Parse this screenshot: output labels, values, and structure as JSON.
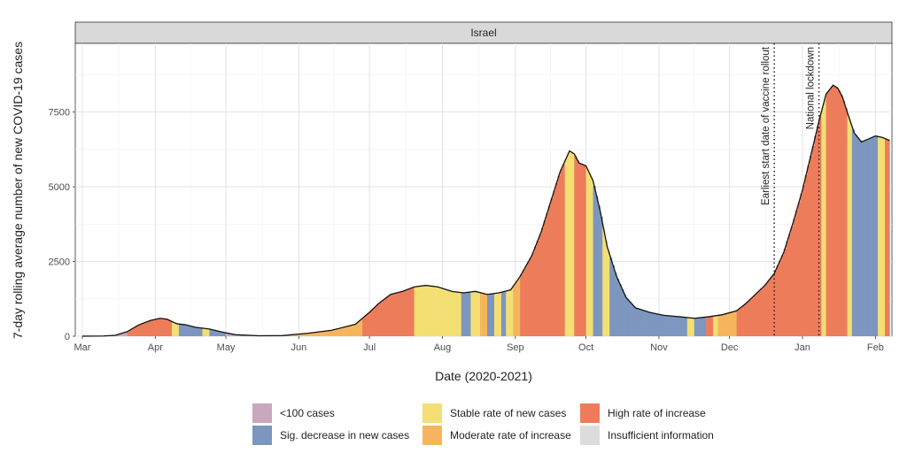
{
  "chart_data": {
    "type": "area",
    "facet": "Israel",
    "xlabel": "Date (2020-2021)",
    "ylabel": "7-day rolling average number of new COVID-19 cases",
    "ylim": [
      0,
      9800
    ],
    "yticks": [
      0,
      2500,
      5000,
      7500
    ],
    "ytick_labels": [
      "0",
      "2500",
      "5000",
      "7500"
    ],
    "xlim": [
      "2020-02-27",
      "2021-02-08"
    ],
    "xticks": [
      "2020-03-01",
      "2020-04-01",
      "2020-05-01",
      "2020-06-01",
      "2020-07-01",
      "2020-08-01",
      "2020-09-01",
      "2020-10-01",
      "2020-11-01",
      "2020-12-01",
      "2021-01-01",
      "2021-02-01"
    ],
    "xtick_labels": [
      "Mar",
      "Apr",
      "May",
      "Jun",
      "Jul",
      "Aug",
      "Sep",
      "Oct",
      "Nov",
      "Dec",
      "Jan",
      "Feb"
    ],
    "grid": true,
    "legend_position": "bottom",
    "categories": [
      {
        "key": "lt100",
        "label": "<100 cases",
        "color": "#c9a8bd"
      },
      {
        "key": "dec",
        "label": "Sig. decrease in new cases",
        "color": "#7d96bf"
      },
      {
        "key": "stable",
        "label": "Stable rate of new cases",
        "color": "#f3df73"
      },
      {
        "key": "mod",
        "label": "Moderate rate of increase",
        "color": "#f6b55c"
      },
      {
        "key": "high",
        "label": "High rate of increase",
        "color": "#ed7c5b"
      },
      {
        "key": "insuf",
        "label": "Insufficient information",
        "color": "#dcdcdc"
      }
    ],
    "category_periods": [
      [
        "2020-03-01",
        "2020-03-20",
        "lt100"
      ],
      [
        "2020-03-20",
        "2020-04-01",
        "high"
      ],
      [
        "2020-04-01",
        "2020-04-08",
        "high"
      ],
      [
        "2020-04-08",
        "2020-04-11",
        "stable"
      ],
      [
        "2020-04-11",
        "2020-04-21",
        "dec"
      ],
      [
        "2020-04-21",
        "2020-04-24",
        "stable"
      ],
      [
        "2020-04-24",
        "2020-05-01",
        "dec"
      ],
      [
        "2020-05-01",
        "2020-05-24",
        "lt100"
      ],
      [
        "2020-05-24",
        "2020-06-28",
        "mod"
      ],
      [
        "2020-06-28",
        "2020-07-20",
        "high"
      ],
      [
        "2020-07-20",
        "2020-08-09",
        "stable"
      ],
      [
        "2020-08-09",
        "2020-08-13",
        "dec"
      ],
      [
        "2020-08-13",
        "2020-08-17",
        "stable"
      ],
      [
        "2020-08-17",
        "2020-08-20",
        "mod"
      ],
      [
        "2020-08-20",
        "2020-08-23",
        "dec"
      ],
      [
        "2020-08-23",
        "2020-08-26",
        "stable"
      ],
      [
        "2020-08-26",
        "2020-08-28",
        "dec"
      ],
      [
        "2020-08-28",
        "2020-08-31",
        "stable"
      ],
      [
        "2020-08-31",
        "2020-09-03",
        "mod"
      ],
      [
        "2020-09-03",
        "2020-09-22",
        "high"
      ],
      [
        "2020-09-22",
        "2020-09-26",
        "stable"
      ],
      [
        "2020-09-26",
        "2020-10-01",
        "high"
      ],
      [
        "2020-10-01",
        "2020-10-04",
        "stable"
      ],
      [
        "2020-10-04",
        "2020-10-08",
        "dec"
      ],
      [
        "2020-10-08",
        "2020-10-11",
        "stable"
      ],
      [
        "2020-10-11",
        "2020-11-13",
        "dec"
      ],
      [
        "2020-11-13",
        "2020-11-16",
        "stable"
      ],
      [
        "2020-11-16",
        "2020-11-21",
        "dec"
      ],
      [
        "2020-11-21",
        "2020-11-24",
        "high"
      ],
      [
        "2020-11-24",
        "2020-11-26",
        "stable"
      ],
      [
        "2020-11-26",
        "2020-12-04",
        "mod"
      ],
      [
        "2020-12-04",
        "2021-01-09",
        "high"
      ],
      [
        "2021-01-09",
        "2021-01-11",
        "stable"
      ],
      [
        "2021-01-11",
        "2021-01-20",
        "high"
      ],
      [
        "2021-01-20",
        "2021-01-22",
        "stable"
      ],
      [
        "2021-01-22",
        "2021-02-02",
        "dec"
      ],
      [
        "2021-02-02",
        "2021-02-05",
        "stable"
      ],
      [
        "2021-02-05",
        "2021-02-07",
        "high"
      ]
    ],
    "series": [
      {
        "name": "",
        "points": [
          [
            "2020-03-01",
            2
          ],
          [
            "2020-03-10",
            8
          ],
          [
            "2020-03-15",
            30
          ],
          [
            "2020-03-20",
            150
          ],
          [
            "2020-03-25",
            380
          ],
          [
            "2020-03-30",
            530
          ],
          [
            "2020-04-03",
            600
          ],
          [
            "2020-04-06",
            570
          ],
          [
            "2020-04-10",
            420
          ],
          [
            "2020-04-14",
            380
          ],
          [
            "2020-04-18",
            300
          ],
          [
            "2020-04-24",
            240
          ],
          [
            "2020-04-30",
            130
          ],
          [
            "2020-05-05",
            50
          ],
          [
            "2020-05-15",
            15
          ],
          [
            "2020-05-25",
            20
          ],
          [
            "2020-06-05",
            100
          ],
          [
            "2020-06-15",
            200
          ],
          [
            "2020-06-25",
            400
          ],
          [
            "2020-07-01",
            800
          ],
          [
            "2020-07-05",
            1100
          ],
          [
            "2020-07-10",
            1400
          ],
          [
            "2020-07-15",
            1500
          ],
          [
            "2020-07-20",
            1650
          ],
          [
            "2020-07-25",
            1700
          ],
          [
            "2020-07-30",
            1650
          ],
          [
            "2020-08-05",
            1500
          ],
          [
            "2020-08-10",
            1450
          ],
          [
            "2020-08-15",
            1500
          ],
          [
            "2020-08-20",
            1400
          ],
          [
            "2020-08-25",
            1450
          ],
          [
            "2020-08-30",
            1550
          ],
          [
            "2020-09-03",
            2000
          ],
          [
            "2020-09-08",
            2700
          ],
          [
            "2020-09-12",
            3500
          ],
          [
            "2020-09-16",
            4500
          ],
          [
            "2020-09-20",
            5500
          ],
          [
            "2020-09-24",
            6200
          ],
          [
            "2020-09-26",
            6100
          ],
          [
            "2020-09-28",
            5800
          ],
          [
            "2020-10-01",
            5700
          ],
          [
            "2020-10-04",
            5200
          ],
          [
            "2020-10-07",
            4200
          ],
          [
            "2020-10-10",
            3000
          ],
          [
            "2020-10-14",
            2000
          ],
          [
            "2020-10-18",
            1300
          ],
          [
            "2020-10-22",
            950
          ],
          [
            "2020-10-28",
            800
          ],
          [
            "2020-11-03",
            700
          ],
          [
            "2020-11-10",
            650
          ],
          [
            "2020-11-16",
            600
          ],
          [
            "2020-11-22",
            650
          ],
          [
            "2020-11-28",
            720
          ],
          [
            "2020-12-04",
            850
          ],
          [
            "2020-12-08",
            1100
          ],
          [
            "2020-12-12",
            1400
          ],
          [
            "2020-12-16",
            1700
          ],
          [
            "2020-12-20",
            2100
          ],
          [
            "2020-12-24",
            2800
          ],
          [
            "2020-12-28",
            3800
          ],
          [
            "2021-01-01",
            4900
          ],
          [
            "2021-01-05",
            6200
          ],
          [
            "2021-01-08",
            7200
          ],
          [
            "2021-01-11",
            8100
          ],
          [
            "2021-01-14",
            8400
          ],
          [
            "2021-01-16",
            8300
          ],
          [
            "2021-01-18",
            8000
          ],
          [
            "2021-01-20",
            7500
          ],
          [
            "2021-01-23",
            6800
          ],
          [
            "2021-01-26",
            6500
          ],
          [
            "2021-01-29",
            6600
          ],
          [
            "2021-02-01",
            6700
          ],
          [
            "2021-02-04",
            6650
          ],
          [
            "2021-02-07",
            6550
          ]
        ]
      }
    ],
    "annotations": [
      {
        "date": "2020-12-20",
        "label": "Earliest start date of vaccine rollout"
      },
      {
        "date": "2021-01-08",
        "label": "National lockdown"
      }
    ]
  }
}
